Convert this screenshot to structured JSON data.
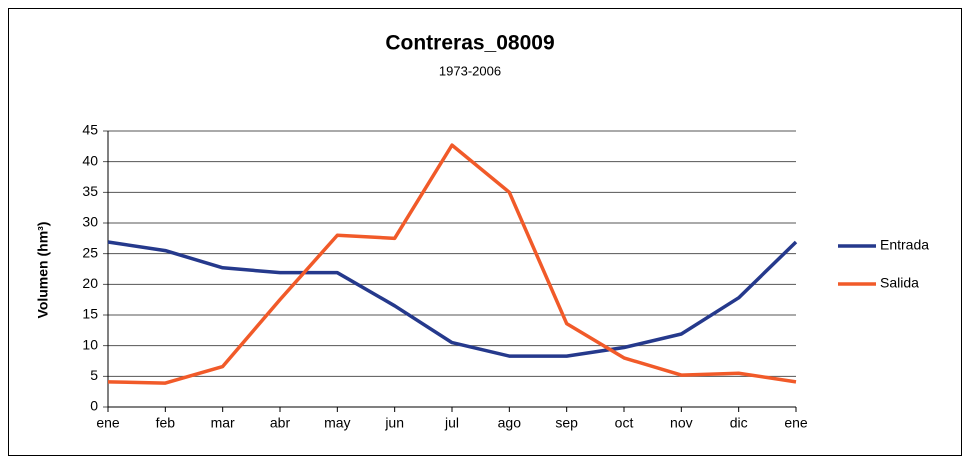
{
  "chart_data": {
    "type": "line",
    "title": "Contreras_08009",
    "subtitle": "1973-2006",
    "y_label": "Volumen (hm³)",
    "categories": [
      "ene",
      "feb",
      "mar",
      "abr",
      "may",
      "jun",
      "jul",
      "ago",
      "sep",
      "oct",
      "nov",
      "dic",
      "ene"
    ],
    "series": [
      {
        "name": "Entrada",
        "color": "#25398c",
        "values": [
          26.9,
          25.5,
          22.7,
          21.9,
          21.9,
          16.5,
          10.5,
          8.3,
          8.3,
          9.7,
          11.9,
          17.8,
          26.9
        ]
      },
      {
        "name": "Salida",
        "color": "#f15a29",
        "values": [
          4.1,
          3.9,
          6.6,
          17.5,
          28.0,
          27.5,
          42.7,
          35.0,
          13.6,
          8.0,
          5.2,
          5.5,
          4.1
        ]
      }
    ],
    "ylim": [
      0,
      45
    ],
    "yticks": [
      0,
      5,
      10,
      15,
      20,
      25,
      30,
      35,
      40,
      45
    ],
    "grid": true,
    "legend": "right"
  }
}
